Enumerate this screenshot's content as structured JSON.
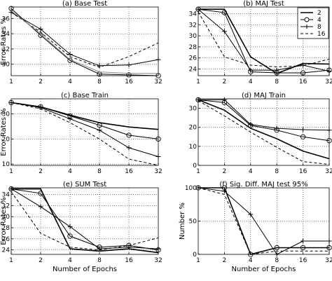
{
  "x_ticks": [
    "1",
    "2",
    "4",
    "8",
    "16",
    "32"
  ],
  "legend": [
    "2",
    "4",
    "8",
    "16"
  ],
  "chart_data": [
    {
      "type": "line",
      "title": "(a) Base Test",
      "xlabel": "",
      "ylabel": "Error Rates %",
      "x": [
        1,
        2,
        4,
        8,
        16,
        32
      ],
      "ylim": [
        28.5,
        37.5
      ],
      "yticks": [
        30,
        32,
        34,
        36
      ],
      "grid": true,
      "series": [
        {
          "name": "2",
          "style": "solid-plus",
          "values": [
            36.8,
            34.6,
            31.3,
            29.8,
            29.9,
            30.6
          ]
        },
        {
          "name": "4",
          "style": "solid-circle",
          "values": [
            37.3,
            33.8,
            30.5,
            28.7,
            28.6,
            28.4
          ]
        },
        {
          "name": "8",
          "style": "dashed",
          "values": [
            36.8,
            34.2,
            31.0,
            29.6,
            31.0,
            32.8
          ]
        },
        {
          "name": "16",
          "style": "grey",
          "values": [
            37.0,
            34.0,
            30.6,
            29.0,
            28.8,
            28.8
          ]
        }
      ]
    },
    {
      "type": "line",
      "title": "(b) MAJ Test",
      "xlabel": "",
      "ylabel": "",
      "x": [
        1,
        2,
        4,
        8,
        16,
        32
      ],
      "ylim": [
        22.8,
        35.2
      ],
      "yticks": [
        24,
        26,
        28,
        30,
        32,
        34
      ],
      "grid": true,
      "legend_position": "top-right",
      "series": [
        {
          "name": "2",
          "style": "solid-thick",
          "values": [
            34.8,
            34.8,
            26.2,
            23.2,
            25.0,
            24.9
          ]
        },
        {
          "name": "4",
          "style": "solid-circle",
          "values": [
            34.8,
            34.2,
            23.5,
            23.3,
            23.3,
            23.8
          ]
        },
        {
          "name": "8",
          "style": "solid-plus",
          "values": [
            34.8,
            30.8,
            23.8,
            23.8,
            24.7,
            23.6
          ]
        },
        {
          "name": "16",
          "style": "dashed",
          "values": [
            34.3,
            26.2,
            24.7,
            24.4,
            24.6,
            25.8
          ]
        }
      ]
    },
    {
      "type": "line",
      "title": "(c) Base Train",
      "xlabel": "",
      "ylabel": "Error Rates %",
      "x": [
        1,
        2,
        4,
        8,
        16,
        32
      ],
      "ylim": [
        9.5,
        36
      ],
      "yticks": [
        10,
        20,
        30
      ],
      "grid": true,
      "series": [
        {
          "name": "2",
          "style": "solid-thick",
          "values": [
            34.5,
            32.8,
            29.5,
            26.5,
            24.8,
            23.8
          ]
        },
        {
          "name": "4",
          "style": "solid-circle",
          "values": [
            34.5,
            32.8,
            29.2,
            25.5,
            21.5,
            20.0
          ]
        },
        {
          "name": "8",
          "style": "solid-plus",
          "values": [
            34.5,
            32.5,
            28.0,
            23.5,
            16.5,
            13.0
          ]
        },
        {
          "name": "16",
          "style": "dashed",
          "values": [
            34.5,
            32.0,
            26.5,
            20.0,
            12.0,
            9.5
          ]
        }
      ]
    },
    {
      "type": "line",
      "title": "(d) MAJ Train",
      "xlabel": "",
      "ylabel": "",
      "x": [
        1,
        2,
        4,
        8,
        16,
        32
      ],
      "ylim": [
        0,
        35
      ],
      "yticks": [
        0,
        10,
        20,
        30
      ],
      "grid": true,
      "series": [
        {
          "name": "2",
          "style": "solid-plus",
          "values": [
            34.5,
            34.5,
            21.5,
            19.5,
            18.8,
            18.5
          ]
        },
        {
          "name": "4",
          "style": "solid-circle",
          "values": [
            34.5,
            33.0,
            21.0,
            18.5,
            15.0,
            13.0
          ]
        },
        {
          "name": "8",
          "style": "solid-thick",
          "values": [
            34.5,
            29.0,
            19.5,
            14.0,
            7.5,
            3.5
          ]
        },
        {
          "name": "16",
          "style": "dashed",
          "values": [
            34.0,
            26.0,
            17.5,
            9.5,
            2.0,
            0.5
          ]
        }
      ]
    },
    {
      "type": "line",
      "title": "(e) SUM Test",
      "xlabel": "Number of Epochs",
      "ylabel": "Error Rates %",
      "x": [
        1,
        2,
        4,
        8,
        16,
        32
      ],
      "ylim": [
        23.2,
        35.2
      ],
      "yticks": [
        24,
        26,
        28,
        30,
        32,
        34
      ],
      "grid": true,
      "series": [
        {
          "name": "2",
          "style": "solid-thick",
          "values": [
            35.0,
            35.0,
            24.2,
            23.8,
            24.2,
            23.5
          ]
        },
        {
          "name": "4",
          "style": "solid-circle",
          "values": [
            35.0,
            34.2,
            26.5,
            24.5,
            24.8,
            24.0
          ]
        },
        {
          "name": "8",
          "style": "solid-plus",
          "values": [
            35.0,
            31.8,
            28.2,
            24.2,
            24.5,
            24.2
          ]
        },
        {
          "name": "16",
          "style": "dashed",
          "values": [
            34.5,
            27.0,
            24.5,
            24.0,
            24.8,
            26.2
          ]
        }
      ]
    },
    {
      "type": "line",
      "title": "(f) Sig. Diff. MAJ test 95%",
      "xlabel": "Number of Epochs",
      "ylabel": "Number %",
      "x": [
        1,
        2,
        4,
        8,
        16,
        32
      ],
      "ylim": [
        0,
        100
      ],
      "yticks": [
        0,
        50,
        100
      ],
      "grid": true,
      "series": [
        {
          "name": "2",
          "style": "solid-thick",
          "values": [
            100,
            100,
            0,
            10,
            10,
            10
          ]
        },
        {
          "name": "4",
          "style": "solid-circle",
          "values": [
            100,
            100,
            0,
            10,
            10,
            10
          ]
        },
        {
          "name": "8",
          "style": "solid-plus",
          "values": [
            100,
            95,
            60,
            0,
            20,
            20
          ]
        },
        {
          "name": "16",
          "style": "dashed",
          "values": [
            100,
            90,
            0,
            5,
            5,
            5
          ]
        }
      ]
    }
  ]
}
